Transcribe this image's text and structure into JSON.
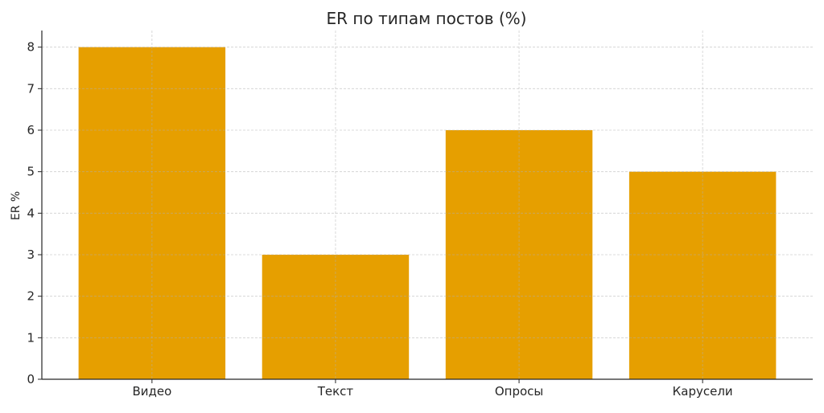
{
  "chart_data": {
    "type": "bar",
    "title": "ER по типам постов (%)",
    "xlabel": "",
    "ylabel": "ER %",
    "categories": [
      "Видео",
      "Текст",
      "Опросы",
      "Карусели"
    ],
    "values": [
      8,
      3,
      6,
      5
    ],
    "ylim": [
      0,
      8.4
    ],
    "yticks": [
      0,
      1,
      2,
      3,
      4,
      5,
      6,
      7,
      8
    ],
    "grid": true,
    "bar_color": "#E69F00"
  }
}
